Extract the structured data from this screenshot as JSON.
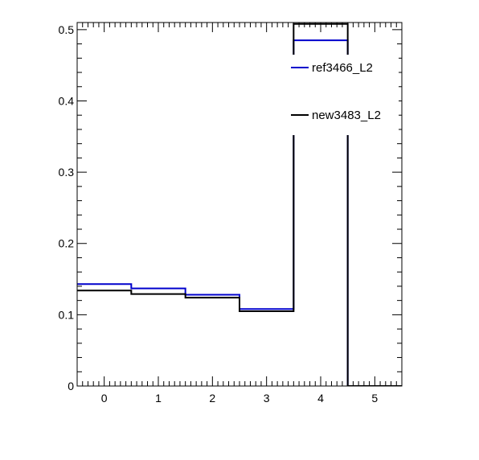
{
  "chart_data": {
    "type": "step-histogram",
    "x_bin_edges": [
      -0.5,
      0.5,
      1.5,
      2.5,
      3.5,
      4.5,
      5.5
    ],
    "xlim": [
      -0.5,
      5.5
    ],
    "ylim": [
      0,
      0.51
    ],
    "x_ticks": [
      0,
      1,
      2,
      3,
      4,
      5
    ],
    "y_ticks": [
      0,
      0.1,
      0.2,
      0.3,
      0.4,
      0.5
    ],
    "x_tick_labels": [
      "0",
      "1",
      "2",
      "3",
      "4",
      "5"
    ],
    "y_tick_labels": [
      "0",
      "0.1",
      "0.2",
      "0.3",
      "0.4",
      "0.5"
    ],
    "grid": false,
    "legend_position": "top-right",
    "series": [
      {
        "name": "ref3466_L2",
        "color": "#0000cc",
        "values": [
          0.143,
          0.137,
          0.128,
          0.108,
          0.485,
          0.0
        ]
      },
      {
        "name": "new3483_L2",
        "color": "#000000",
        "values": [
          0.134,
          0.129,
          0.124,
          0.105,
          0.508,
          0.0
        ]
      }
    ]
  }
}
